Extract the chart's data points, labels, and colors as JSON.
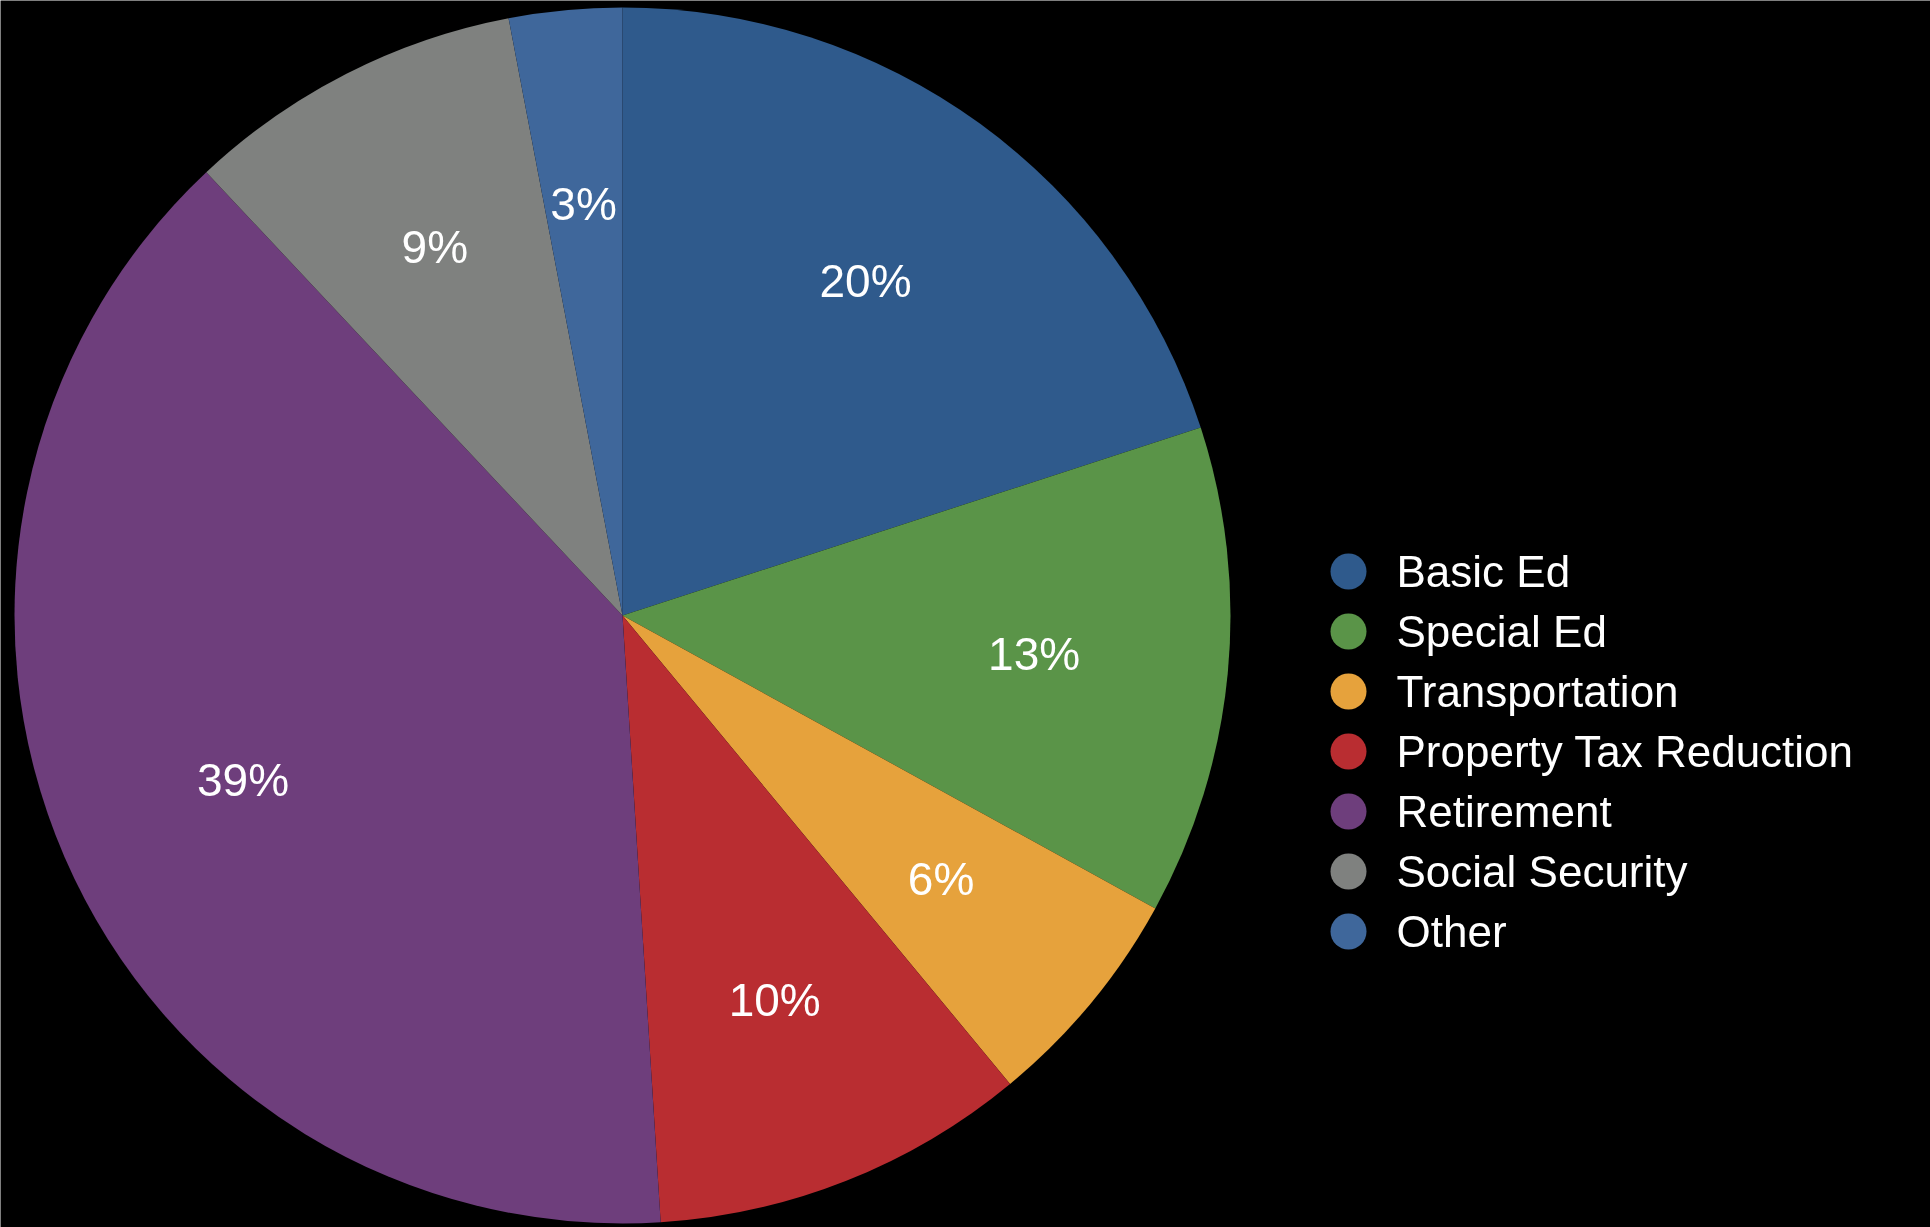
{
  "chart_data": {
    "type": "pie",
    "categories": [
      "Basic Ed",
      "Special Ed",
      "Transportation",
      "Property Tax Reduction",
      "Retirement",
      "Social Security",
      "Other"
    ],
    "values": [
      20,
      13,
      6,
      10,
      39,
      9,
      3
    ],
    "colors": [
      "#2f5a8c",
      "#5a9448",
      "#e6a23c",
      "#b92d31",
      "#6e3e7c",
      "#7f817f",
      "#3f679b"
    ],
    "value_labels": [
      "20%",
      "13%",
      "6%",
      "10%",
      "39%",
      "9%",
      "3%"
    ],
    "legend": "right"
  }
}
